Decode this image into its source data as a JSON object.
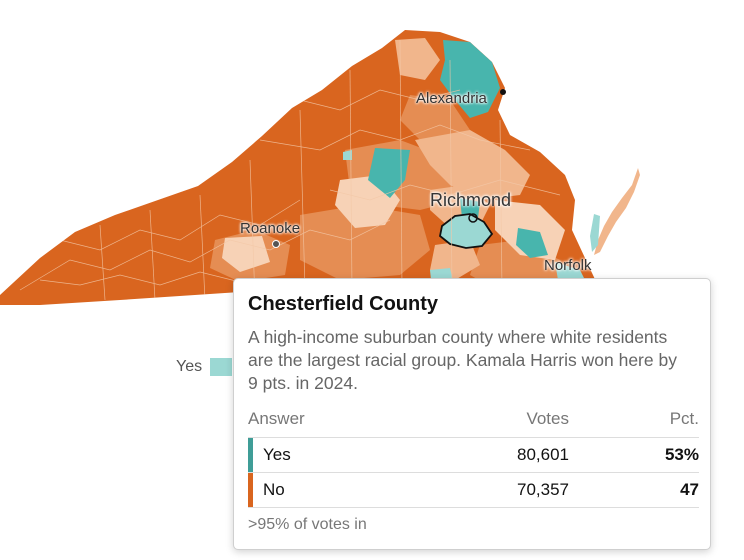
{
  "map": {
    "colors": {
      "yes_strong": "#48b5ad",
      "yes_light": "#9bd8d3",
      "no_strong": "#d9651f",
      "no_mid": "#e58d53",
      "no_light": "#f1b68c",
      "no_pale": "#f7d2b6",
      "border": "#ffffff"
    },
    "cities": [
      {
        "name": "Alexandria"
      },
      {
        "name": "Richmond"
      },
      {
        "name": "Roanoke"
      },
      {
        "name": "Norfolk"
      }
    ]
  },
  "legend": {
    "yes_label": "Yes"
  },
  "tooltip": {
    "title": "Chesterfield County",
    "description": "A high-income suburban county where white residents are the largest racial group. Kamala Harris won here by 9 pts. in 2024.",
    "headers": {
      "answer": "Answer",
      "votes": "Votes",
      "pct": "Pct."
    },
    "rows": [
      {
        "answer": "Yes",
        "votes": "80,601",
        "pct": "53%",
        "color": "#3f9d97"
      },
      {
        "answer": "No",
        "votes": "70,357",
        "pct": "47",
        "color": "#d9651f"
      }
    ],
    "footer": ">95% of votes in"
  }
}
